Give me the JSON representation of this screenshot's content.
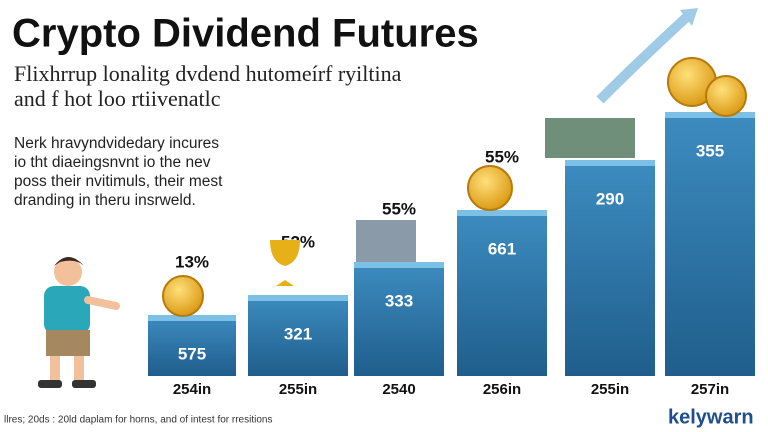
{
  "header": {
    "title": "Crypto Dividend Futures",
    "subtitle": [
      "Flixhrrup lonalitg dvdend hutomeírf ryiltina",
      "and f hot loo rtiivenatlc"
    ]
  },
  "description": [
    "Nerk hravyndvidedary incures",
    "io tht diaeingsnvnt io the nev",
    "poss their nvitimuls, their mest",
    "dranding in theru insrweld."
  ],
  "columns": [
    {
      "label": "254in",
      "value": "575",
      "percent": "13%"
    },
    {
      "label": "255in",
      "value": "321",
      "percent": "52%"
    },
    {
      "label": "2540",
      "value": "333",
      "percent": "55%"
    },
    {
      "label": "256in",
      "value": "661",
      "percent": "55%"
    },
    {
      "label": "255in",
      "value": "290"
    },
    {
      "label": "257in",
      "value": "355"
    }
  ],
  "footer": "llres; 20ds : 20ld daplam for horns, and of intest for rresitions",
  "brand": "kelywarn"
}
